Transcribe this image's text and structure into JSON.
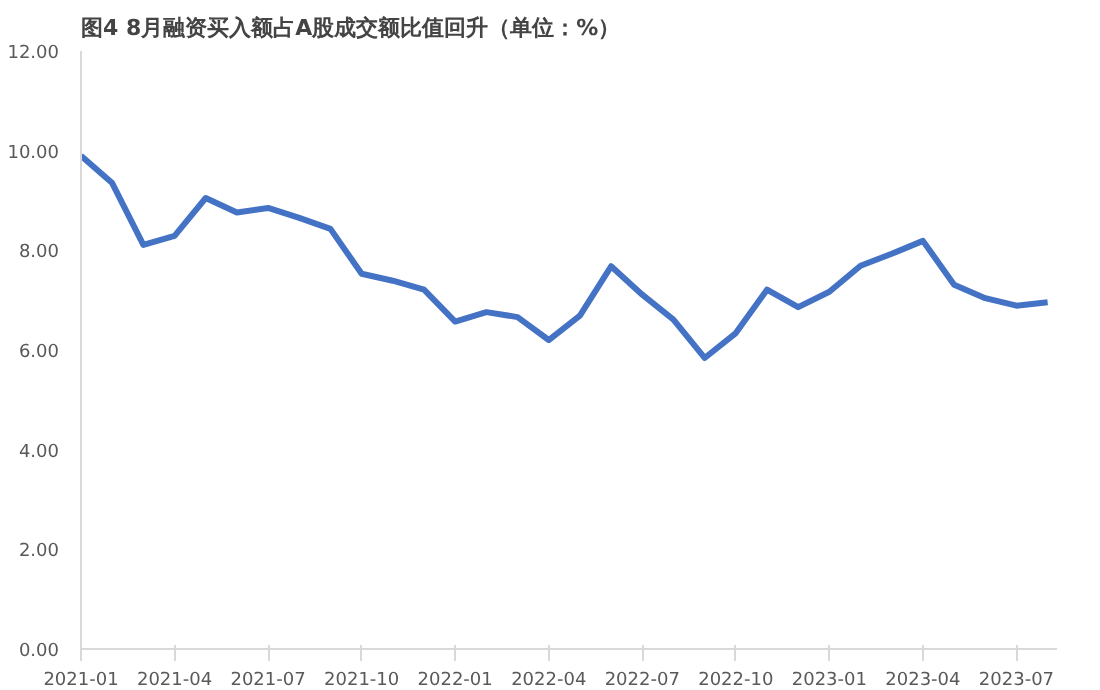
{
  "chart_data": {
    "type": "line",
    "title": "图4 8月融资买入额占A股成交额比值回升（单位：%）",
    "categories": [
      "2021-01",
      null,
      null,
      "2021-04",
      null,
      null,
      "2021-07",
      null,
      null,
      "2021-10",
      null,
      null,
      "2022-01",
      null,
      null,
      "2022-04",
      null,
      null,
      "2022-07",
      null,
      null,
      "2022-10",
      null,
      null,
      "2023-01",
      null,
      null,
      "2023-04",
      null,
      null,
      "2023-07",
      null
    ],
    "series": [
      {
        "color": "#4472c4",
        "values": [
          9.9,
          9.35,
          8.11,
          8.29,
          9.05,
          8.76,
          8.85,
          8.65,
          8.43,
          7.53,
          7.39,
          7.21,
          6.57,
          6.76,
          6.66,
          6.2,
          6.69,
          7.68,
          7.11,
          6.61,
          5.84,
          6.34,
          7.21,
          6.86,
          7.17,
          7.69,
          7.93,
          8.19,
          7.31,
          7.04,
          6.89,
          6.96
        ]
      }
    ],
    "ylim": [
      0,
      12
    ],
    "yticks": [
      {
        "value": 0,
        "label": "0.00"
      },
      {
        "value": 2,
        "label": "2.00"
      },
      {
        "value": 4,
        "label": "4.00"
      },
      {
        "value": 6,
        "label": "6.00"
      },
      {
        "value": 8,
        "label": "8.00"
      },
      {
        "value": 10,
        "label": "10.00"
      },
      {
        "value": 12,
        "label": "12.00"
      }
    ],
    "grid": false,
    "marker": "none",
    "line_style": "solid"
  }
}
